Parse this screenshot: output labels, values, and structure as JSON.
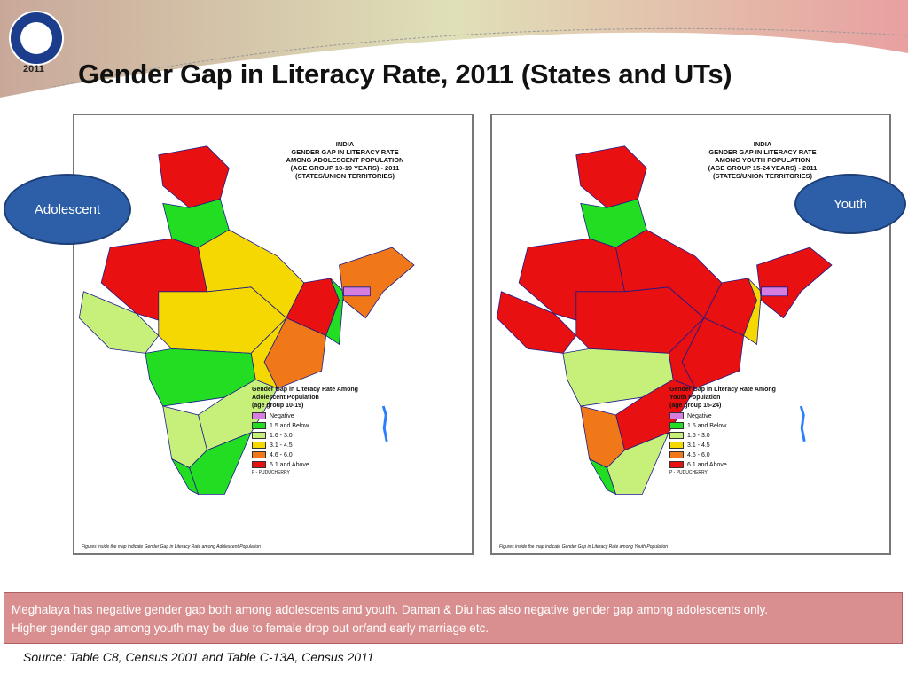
{
  "slide": {
    "title": "Gender Gap in Literacy Rate, 2011 (States and UTs)",
    "logo": {
      "text": "भारत की जनगणना CENSUS OF INDIA",
      "year": "2011"
    },
    "note": {
      "lines": [
        "Meghalaya has negative gender gap both among adolescents and youth. Daman & Diu has also negative gender gap among adolescents only.",
        "Higher gender gap among youth may be due to female drop out or/and early marriage etc."
      ]
    },
    "source": "Source: Table C8, Census 2001 and Table C-13A, Census 2011"
  },
  "legend_colors": {
    "negative": "#d67ee0",
    "le1_5": "#22dd22",
    "1_6_3_0": "#c6f07a",
    "3_1_4_5": "#f5d800",
    "4_6_6_0": "#f07818",
    "ge6_1": "#e81010"
  },
  "maps": [
    {
      "label": "Adolescent",
      "title": [
        "INDIA",
        "GENDER GAP IN LITERACY RATE",
        "AMONG ADOLESCENT POPULATION",
        "(AGE GROUP 10-19 YEARS) - 2011",
        "(STATES/UNION TERRITORIES)"
      ],
      "legend_title": [
        "Gender Gap in Literacy Rate Among",
        "Adolescent Population",
        "(age group 10-19)"
      ],
      "legend": [
        "Negative",
        "1.5 and Below",
        "1.6 - 3.0",
        "3.1 - 4.5",
        "4.6 - 6.0",
        "6.1 and Above"
      ],
      "note": "P - PUDUCHERRY",
      "footer": "Figures inside the map indicate Gender Gap in Literacy Rate among Adolescent Population",
      "regions": {
        "jk": "ge6_1",
        "north": "le1_5",
        "rajasthan": "ge6_1",
        "gujarat": "1_6_3_0",
        "mp": "3_1_4_5",
        "up": "3_1_4_5",
        "bihar": "ge6_1",
        "wb": "le1_5",
        "odisha": "4_6_6_0",
        "chhattisgarh": "3_1_4_5",
        "maharashtra": "le1_5",
        "ap": "1_6_3_0",
        "karnataka": "1_6_3_0",
        "tn": "le1_5",
        "kerala": "le1_5",
        "ne": "4_6_6_0",
        "meghalaya": "negative"
      }
    },
    {
      "label": "Youth",
      "title": [
        "INDIA",
        "GENDER GAP IN LITERACY RATE",
        "AMONG YOUTH POPULATION",
        "(AGE GROUP 15-24 YEARS) - 2011",
        "(STATES/UNION TERRITORIES)"
      ],
      "legend_title": [
        "Gender Gap in Literacy Rate Among",
        "Youth Population",
        "(age group 15-24)"
      ],
      "legend": [
        "Negative",
        "1.5 and Below",
        "1.6 - 3.0",
        "3.1 - 4.5",
        "4.6 - 6.0",
        "6.1 and Above"
      ],
      "note": "P - PUDUCHERRY",
      "footer": "Figures inside the map indicate Gender Gap in Literacy Rate among Youth Population",
      "regions": {
        "jk": "ge6_1",
        "north": "le1_5",
        "rajasthan": "ge6_1",
        "gujarat": "ge6_1",
        "mp": "ge6_1",
        "up": "ge6_1",
        "bihar": "ge6_1",
        "wb": "3_1_4_5",
        "odisha": "ge6_1",
        "chhattisgarh": "ge6_1",
        "maharashtra": "1_6_3_0",
        "ap": "ge6_1",
        "karnataka": "4_6_6_0",
        "tn": "1_6_3_0",
        "kerala": "le1_5",
        "ne": "ge6_1",
        "meghalaya": "negative"
      }
    }
  ]
}
